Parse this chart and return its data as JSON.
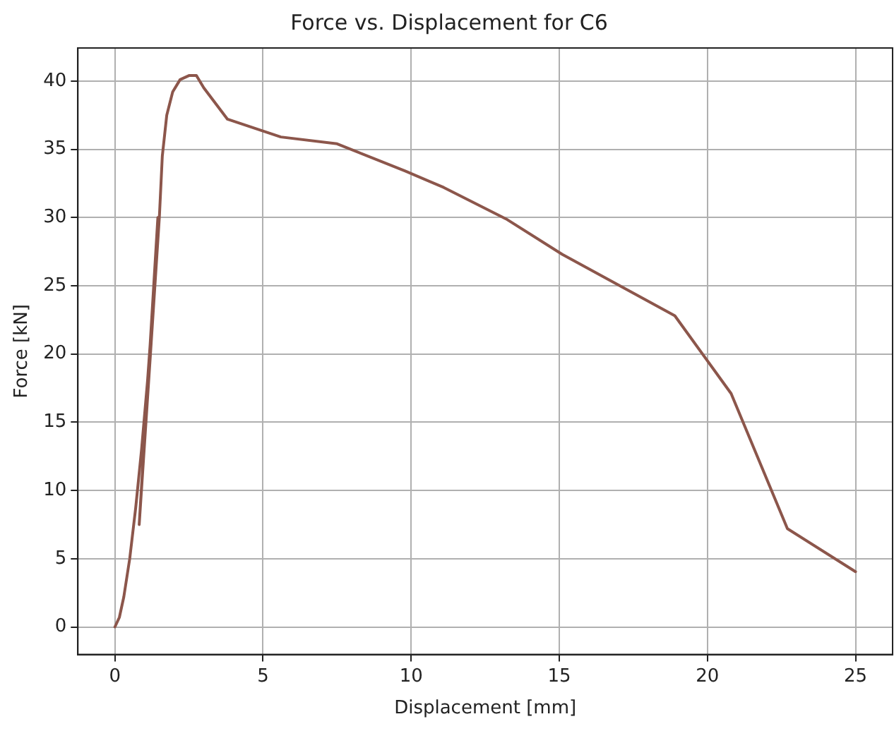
{
  "chart_data": {
    "type": "line",
    "title": "Force vs. Displacement for C6",
    "xlabel": "Displacement [mm]",
    "ylabel": "Force [kN]",
    "x": [
      0,
      0.15,
      0.3,
      0.5,
      0.7,
      0.9,
      1.1,
      1.3,
      1.45,
      0.82,
      1.2,
      1.5,
      1.6,
      1.75,
      1.95,
      2.2,
      2.5,
      2.75,
      3.0,
      3.8,
      5.6,
      7.5,
      9.8,
      11.1,
      13.2,
      15.1,
      18.9,
      20.8,
      22.7,
      25
    ],
    "series": [
      {
        "color": "#8c564b",
        "values": [
          0,
          0.7,
          2.2,
          5,
          8.7,
          13,
          18,
          24,
          30,
          7.5,
          20,
          30,
          34.5,
          37.5,
          39.2,
          40.1,
          40.4,
          40.4,
          39.5,
          37.2,
          35.9,
          35.4,
          33.4,
          32.2,
          29.9,
          27.3,
          22.8,
          17.1,
          7.2,
          4.05
        ]
      }
    ],
    "xlim": [
      -1.25,
      26.25
    ],
    "ylim": [
      -2.02,
      42.42
    ],
    "xticks": [
      0,
      5,
      10,
      15,
      20,
      25
    ],
    "yticks": [
      0,
      5,
      10,
      15,
      20,
      25,
      30,
      35,
      40
    ],
    "grid": true,
    "legend": false,
    "marker": "none",
    "line_style": "solid"
  }
}
